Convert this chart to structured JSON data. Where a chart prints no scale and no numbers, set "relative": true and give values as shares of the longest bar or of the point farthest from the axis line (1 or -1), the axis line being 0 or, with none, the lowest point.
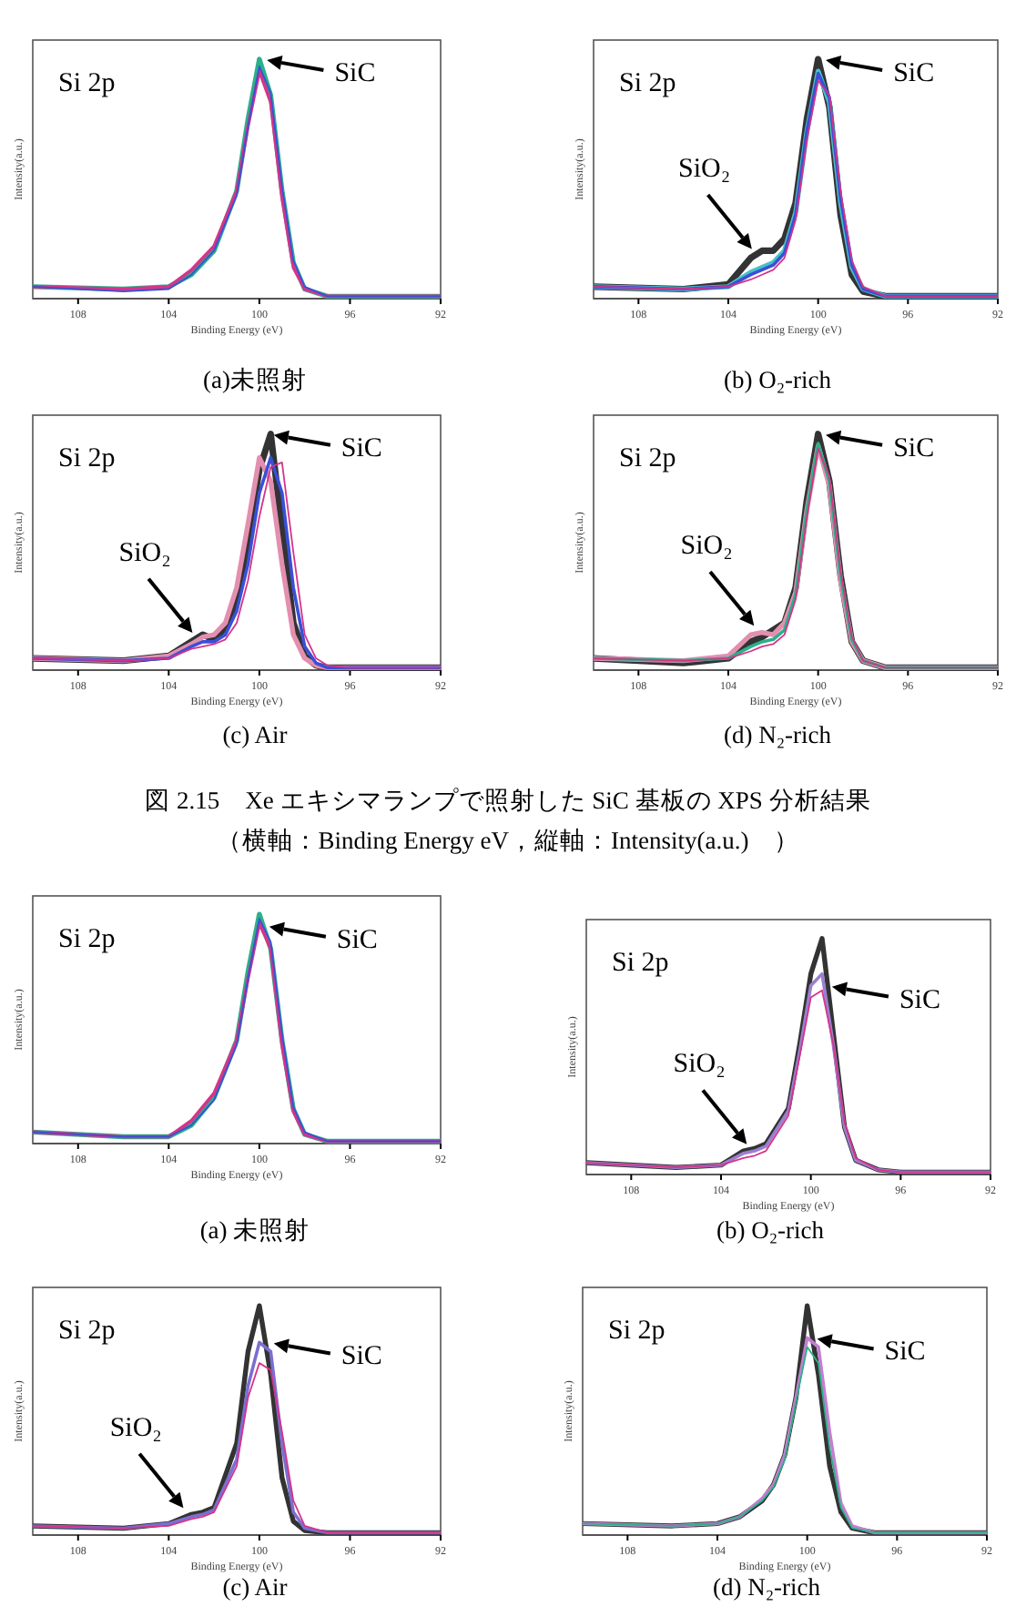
{
  "chart_data": [
    {
      "type": "line",
      "title": "(a)未照射",
      "xlabel": "Binding Energy (eV)",
      "ylabel": "Intensity(a.u.)",
      "relative": true,
      "xlim": [
        110,
        92
      ],
      "xticks": [
        108,
        104,
        100,
        96,
        92
      ],
      "x": [
        110,
        106,
        104,
        103,
        102,
        101,
        100.5,
        100,
        99.5,
        99,
        98.5,
        98,
        97,
        96,
        92
      ],
      "series": [
        {
          "color": "#2bb08a",
          "values": [
            0.05,
            0.04,
            0.05,
            0.1,
            0.2,
            0.45,
            0.75,
            1,
            0.85,
            0.45,
            0.15,
            0.04,
            0.01,
            0.01,
            0.01
          ]
        },
        {
          "color": "#d6338a",
          "values": [
            0.05,
            0.04,
            0.05,
            0.12,
            0.22,
            0.45,
            0.72,
            0.95,
            0.82,
            0.42,
            0.13,
            0.04,
            0.01,
            0.01,
            0.01
          ]
        },
        {
          "color": "#3b4fd6",
          "values": [
            0.05,
            0.03,
            0.04,
            0.1,
            0.2,
            0.43,
            0.72,
            0.97,
            0.86,
            0.47,
            0.16,
            0.05,
            0.01,
            0.01,
            0.01
          ]
        }
      ],
      "annotations": [
        "Si 2p",
        {
          "text": "SiC",
          "x": 99.9,
          "y": 1
        }
      ]
    },
    {
      "type": "line",
      "title": "(b) O₂-rich",
      "xlabel": "Binding Energy (eV)",
      "ylabel": "Intensity(a.u.)",
      "relative": true,
      "xlim": [
        110,
        92
      ],
      "xticks": [
        108,
        104,
        100,
        96,
        92
      ],
      "x": [
        110,
        106,
        104,
        103,
        102.5,
        102,
        101.5,
        101,
        100.5,
        100,
        99.5,
        99,
        98.5,
        98,
        97,
        96,
        92
      ],
      "series": [
        {
          "color": "#333333",
          "values": [
            0.05,
            0.04,
            0.06,
            0.17,
            0.2,
            0.2,
            0.25,
            0.4,
            0.75,
            1,
            0.8,
            0.35,
            0.1,
            0.03,
            0.01,
            0.01,
            0.01
          ]
        },
        {
          "color": "#46c1c8",
          "values": [
            0.05,
            0.04,
            0.05,
            0.11,
            0.13,
            0.15,
            0.2,
            0.36,
            0.7,
            0.95,
            0.82,
            0.4,
            0.13,
            0.04,
            0.01,
            0.01,
            0.01
          ]
        },
        {
          "color": "#3b4fd6",
          "values": [
            0.05,
            0.04,
            0.05,
            0.1,
            0.12,
            0.14,
            0.19,
            0.35,
            0.7,
            0.94,
            0.84,
            0.42,
            0.14,
            0.04,
            0.01,
            0.01,
            0.01
          ]
        },
        {
          "color": "#d6338a",
          "values": [
            0.05,
            0.04,
            0.05,
            0.08,
            0.1,
            0.12,
            0.17,
            0.33,
            0.66,
            0.91,
            0.85,
            0.45,
            0.16,
            0.05,
            0.01,
            0.01,
            0.01
          ]
        }
      ],
      "annotations": [
        "Si 2p",
        {
          "text": "SiC",
          "x": 99.9,
          "y": 1
        },
        {
          "text": "SiO₂",
          "x": 102.8,
          "y": 0.19
        }
      ]
    },
    {
      "type": "line",
      "title": "(c) Air",
      "xlabel": "Binding Energy (eV)",
      "ylabel": "Intensity(a.u.)",
      "relative": true,
      "xlim": [
        110,
        92
      ],
      "xticks": [
        108,
        104,
        100,
        96,
        92
      ],
      "x": [
        110,
        106,
        104,
        103,
        102.5,
        102,
        101.5,
        101,
        100.5,
        100,
        99.5,
        99,
        98.5,
        98,
        97.5,
        97,
        96,
        92
      ],
      "series": [
        {
          "color": "#333333",
          "values": [
            0.05,
            0.04,
            0.06,
            0.12,
            0.15,
            0.13,
            0.18,
            0.3,
            0.55,
            0.85,
            1,
            0.6,
            0.2,
            0.06,
            0.02,
            0.01,
            0.01,
            0.01
          ]
        },
        {
          "color": "#e38fb0",
          "values": [
            0.05,
            0.04,
            0.06,
            0.11,
            0.14,
            0.15,
            0.2,
            0.35,
            0.62,
            0.9,
            0.8,
            0.45,
            0.15,
            0.05,
            0.02,
            0.01,
            0.01,
            0.01
          ]
        },
        {
          "color": "#3b4fd6",
          "values": [
            0.05,
            0.04,
            0.05,
            0.1,
            0.12,
            0.12,
            0.15,
            0.25,
            0.45,
            0.75,
            0.9,
            0.75,
            0.35,
            0.1,
            0.03,
            0.01,
            0.01,
            0.01
          ]
        },
        {
          "color": "#d6338a",
          "values": [
            0.05,
            0.04,
            0.05,
            0.09,
            0.1,
            0.11,
            0.13,
            0.2,
            0.38,
            0.65,
            0.86,
            0.88,
            0.5,
            0.15,
            0.05,
            0.02,
            0.01,
            0.01
          ]
        }
      ],
      "annotations": [
        "Si 2p",
        {
          "text": "SiC",
          "x": 99.6,
          "y": 1
        },
        {
          "text": "SiO₂",
          "x": 102.8,
          "y": 0.14
        }
      ]
    },
    {
      "type": "line",
      "title": "(d) N₂-rich",
      "xlabel": "Binding Energy (eV)",
      "ylabel": "Intensity(a.u.)",
      "relative": true,
      "xlim": [
        110,
        92
      ],
      "xticks": [
        108,
        104,
        100,
        96,
        92
      ],
      "x": [
        110,
        106,
        104,
        103,
        102.5,
        102,
        101.5,
        101,
        100.5,
        100,
        99.5,
        99,
        98.5,
        98,
        97,
        96,
        92
      ],
      "series": [
        {
          "color": "#333333",
          "values": [
            0.05,
            0.03,
            0.05,
            0.12,
            0.14,
            0.17,
            0.2,
            0.35,
            0.72,
            1,
            0.8,
            0.4,
            0.12,
            0.04,
            0.01,
            0.01,
            0.01
          ]
        },
        {
          "color": "#e38fb0",
          "values": [
            0.05,
            0.04,
            0.06,
            0.15,
            0.16,
            0.15,
            0.2,
            0.33,
            0.68,
            0.95,
            0.78,
            0.38,
            0.12,
            0.04,
            0.01,
            0.01,
            0.01
          ]
        },
        {
          "color": "#2bb08a",
          "values": [
            0.05,
            0.04,
            0.05,
            0.1,
            0.12,
            0.13,
            0.17,
            0.32,
            0.68,
            0.96,
            0.8,
            0.4,
            0.13,
            0.04,
            0.01,
            0.01,
            0.01
          ]
        },
        {
          "color": "#d6338a",
          "values": [
            0.05,
            0.04,
            0.05,
            0.08,
            0.1,
            0.11,
            0.15,
            0.3,
            0.65,
            0.94,
            0.82,
            0.42,
            0.14,
            0.04,
            0.01,
            0.01,
            0.01
          ]
        }
      ],
      "annotations": [
        "Si 2p",
        {
          "text": "SiC",
          "x": 99.9,
          "y": 1
        },
        {
          "text": "SiO₂",
          "x": 102.7,
          "y": 0.17
        },
        "図 2.15　Xe エキシマランプで照射した SiC 基板の XPS 分析結果",
        "（横軸：Binding Energy eV，縦軸：Intensity(a.u.)　）"
      ]
    },
    {
      "type": "line",
      "title": "(a)  未照射",
      "xlabel": "Binding Energy (eV)",
      "ylabel": "Intensity(a.u.)",
      "relative": true,
      "xlim": [
        110,
        92
      ],
      "xticks": [
        108,
        104,
        100,
        96,
        92
      ],
      "x": [
        110,
        106,
        104,
        103,
        102,
        101,
        100.5,
        100,
        99.5,
        99,
        98.5,
        98,
        97,
        96,
        92
      ],
      "series": [
        {
          "color": "#2bb08a",
          "values": [
            0.05,
            0.03,
            0.03,
            0.08,
            0.2,
            0.45,
            0.75,
            1,
            0.85,
            0.45,
            0.15,
            0.04,
            0.01,
            0.01,
            0.01
          ]
        },
        {
          "color": "#d6338a",
          "values": [
            0.05,
            0.03,
            0.03,
            0.1,
            0.22,
            0.45,
            0.72,
            0.96,
            0.85,
            0.43,
            0.14,
            0.04,
            0.01,
            0.01,
            0.01
          ]
        },
        {
          "color": "#3b4fd6",
          "values": [
            0.05,
            0.03,
            0.03,
            0.08,
            0.19,
            0.43,
            0.72,
            0.98,
            0.88,
            0.48,
            0.16,
            0.05,
            0.01,
            0.01,
            0.01
          ]
        }
      ],
      "annotations": [
        "Si 2p",
        {
          "text": "SiC",
          "x": 99.8,
          "y": 0.95
        }
      ]
    },
    {
      "type": "line",
      "title": "(b) O₂-rich",
      "xlabel": "Binding Energy (eV)",
      "ylabel": "Intensity(a.u.)",
      "relative": true,
      "xlim": [
        110,
        92
      ],
      "xticks": [
        108,
        104,
        100,
        96,
        92
      ],
      "x": [
        110,
        106,
        104,
        103,
        102.5,
        102,
        101,
        100.5,
        100,
        99.5,
        99,
        98.5,
        98,
        97,
        96,
        92
      ],
      "series": [
        {
          "color": "#333333",
          "values": [
            0.05,
            0.03,
            0.04,
            0.1,
            0.11,
            0.13,
            0.28,
            0.55,
            0.85,
            1,
            0.6,
            0.2,
            0.06,
            0.02,
            0.01,
            0.01
          ]
        },
        {
          "color": "#9b7fd0",
          "values": [
            0.05,
            0.03,
            0.04,
            0.09,
            0.1,
            0.12,
            0.27,
            0.52,
            0.8,
            0.85,
            0.55,
            0.2,
            0.06,
            0.02,
            0.01,
            0.01
          ]
        },
        {
          "color": "#d6338a",
          "values": [
            0.05,
            0.03,
            0.04,
            0.07,
            0.08,
            0.1,
            0.25,
            0.5,
            0.75,
            0.78,
            0.55,
            0.22,
            0.07,
            0.02,
            0.01,
            0.01
          ]
        }
      ],
      "annotations": [
        "Si 2p",
        {
          "text": "SiC",
          "x": 99.3,
          "y": 0.8
        },
        {
          "text": "SiO₂",
          "x": 102.7,
          "y": 0.11
        }
      ]
    },
    {
      "type": "line",
      "title": "(c) Air",
      "xlabel": "Binding Energy (eV)",
      "ylabel": "Intensity(a.u.)",
      "relative": true,
      "xlim": [
        110,
        92
      ],
      "xticks": [
        108,
        104,
        100,
        96,
        92
      ],
      "x": [
        110,
        106,
        104,
        103,
        102.5,
        102,
        101,
        100.5,
        100,
        99.5,
        99,
        98.5,
        98,
        97,
        96,
        92
      ],
      "series": [
        {
          "color": "#333333",
          "values": [
            0.04,
            0.03,
            0.05,
            0.09,
            0.1,
            0.12,
            0.4,
            0.8,
            1,
            0.7,
            0.25,
            0.06,
            0.02,
            0.01,
            0.01,
            0.01
          ]
        },
        {
          "color": "#7a6fd0",
          "values": [
            0.04,
            0.03,
            0.05,
            0.08,
            0.09,
            0.11,
            0.33,
            0.65,
            0.84,
            0.8,
            0.4,
            0.1,
            0.03,
            0.01,
            0.01,
            0.01
          ]
        },
        {
          "color": "#d6338a",
          "values": [
            0.04,
            0.03,
            0.04,
            0.07,
            0.08,
            0.1,
            0.3,
            0.6,
            0.75,
            0.72,
            0.45,
            0.15,
            0.04,
            0.01,
            0.01,
            0.01
          ]
        }
      ],
      "annotations": [
        "Si 2p",
        {
          "text": "SiC",
          "x": 99.6,
          "y": 0.84
        },
        {
          "text": "SiO₂",
          "x": 103.2,
          "y": 0.1
        }
      ]
    },
    {
      "type": "line",
      "title": "(d) N₂-rich",
      "xlabel": "Binding Energy (eV)",
      "ylabel": "Intensity(a.u.)",
      "relative": true,
      "xlim": [
        110,
        92
      ],
      "xticks": [
        108,
        104,
        100,
        96,
        92
      ],
      "x": [
        110,
        106,
        104,
        103,
        102,
        101.5,
        101,
        100.5,
        100,
        99.5,
        99,
        98.5,
        98,
        97,
        96,
        92
      ],
      "series": [
        {
          "color": "#333333",
          "values": [
            0.05,
            0.04,
            0.05,
            0.08,
            0.15,
            0.22,
            0.35,
            0.6,
            1,
            0.7,
            0.3,
            0.1,
            0.03,
            0.01,
            0.01,
            0.01
          ]
        },
        {
          "color": "#c47fd0",
          "values": [
            0.05,
            0.04,
            0.05,
            0.08,
            0.16,
            0.22,
            0.35,
            0.6,
            0.86,
            0.82,
            0.45,
            0.14,
            0.04,
            0.01,
            0.01,
            0.01
          ]
        },
        {
          "color": "#2bb08a",
          "values": [
            0.05,
            0.04,
            0.05,
            0.08,
            0.15,
            0.21,
            0.33,
            0.58,
            0.82,
            0.75,
            0.38,
            0.12,
            0.03,
            0.01,
            0.01,
            0.01
          ]
        }
      ],
      "annotations": [
        "Si 2p",
        {
          "text": "SiC",
          "x": 99.8,
          "y": 0.86
        }
      ]
    }
  ]
}
